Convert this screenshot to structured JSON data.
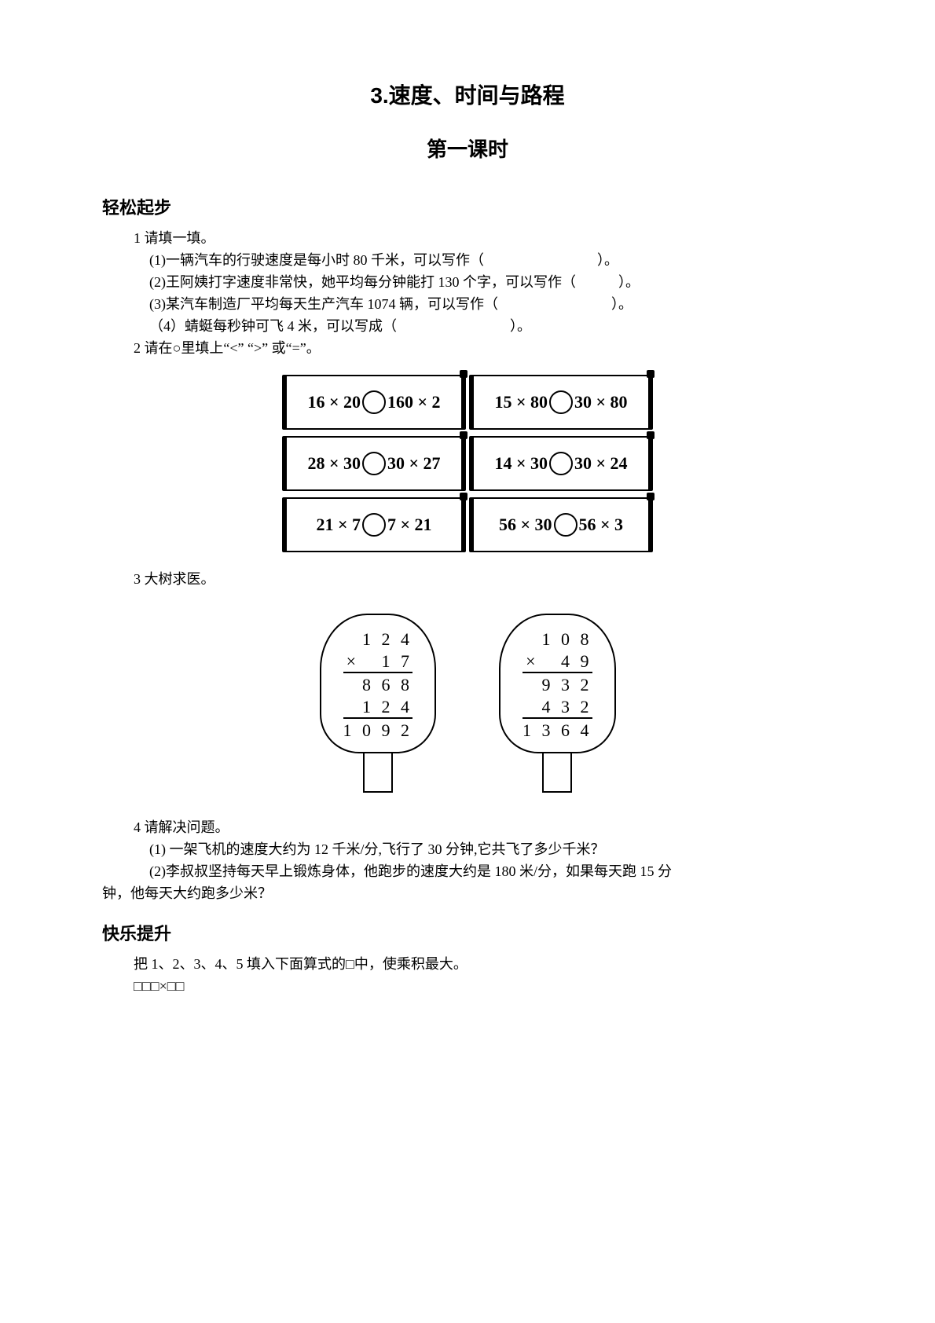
{
  "title_main": "3.速度、时间与路程",
  "title_sub": "第一课时",
  "section1": "轻松起步",
  "q1_head": "1 请填一填。",
  "q1_1": "(1)一辆汽车的行驶速度是每小时 80 千米，可以写作（　　　　　　　　）。",
  "q1_2": "(2)王阿姨打字速度非常快，她平均每分钟能打 130 个字，可以写作（　　　）。",
  "q1_3": "(3)某汽车制造厂平均每天生产汽车 1074 辆，可以写作（　　　　　　　　）。",
  "q1_4": "（4）蜻蜓每秒钟可飞 4 米，可以写成（　　　　　　　　）。",
  "q2_head": "2 请在○里填上“<” “>” 或“=”。",
  "scrolls": [
    {
      "l": "16 × 20",
      "r": "160 × 2"
    },
    {
      "l": "15 × 80",
      "r": "30 × 80"
    },
    {
      "l": "28 × 30",
      "r": "30 × 27"
    },
    {
      "l": "14 × 30",
      "r": "30 × 24"
    },
    {
      "l": "21 × 7",
      "r": "7 × 21"
    },
    {
      "l": "56 × 30",
      "r": "56 × 3"
    }
  ],
  "q3_head": "3 大树求医。",
  "tree1": {
    "r1": "  1 2 4",
    "r2": "×   1 7",
    "r3": "  8 6 8",
    "r4": "  1 2 4",
    "r5": "1 0 9 2"
  },
  "tree2": {
    "r1": "  1 0 8",
    "r2": "×   4 9",
    "r3": "  9 3 2",
    "r4": "  4 3 2",
    "r5": "1 3 6 4"
  },
  "q4_head": "4 请解决问题。",
  "q4_1": "(1) 一架飞机的速度大约为 12 千米/分,飞行了 30 分钟,它共飞了多少千米？",
  "q4_2a": "(2)李叔叔坚持每天早上锻炼身体，他跑步的速度大约是 180 米/分，如果每天跑 15 分",
  "q4_2b": "钟，他每天大约跑多少米？",
  "section2": "快乐提升",
  "q5_1": "把 1、2、3、4、5 填入下面算式的□中，使乘积最大。",
  "q5_2": "□□□×□□"
}
